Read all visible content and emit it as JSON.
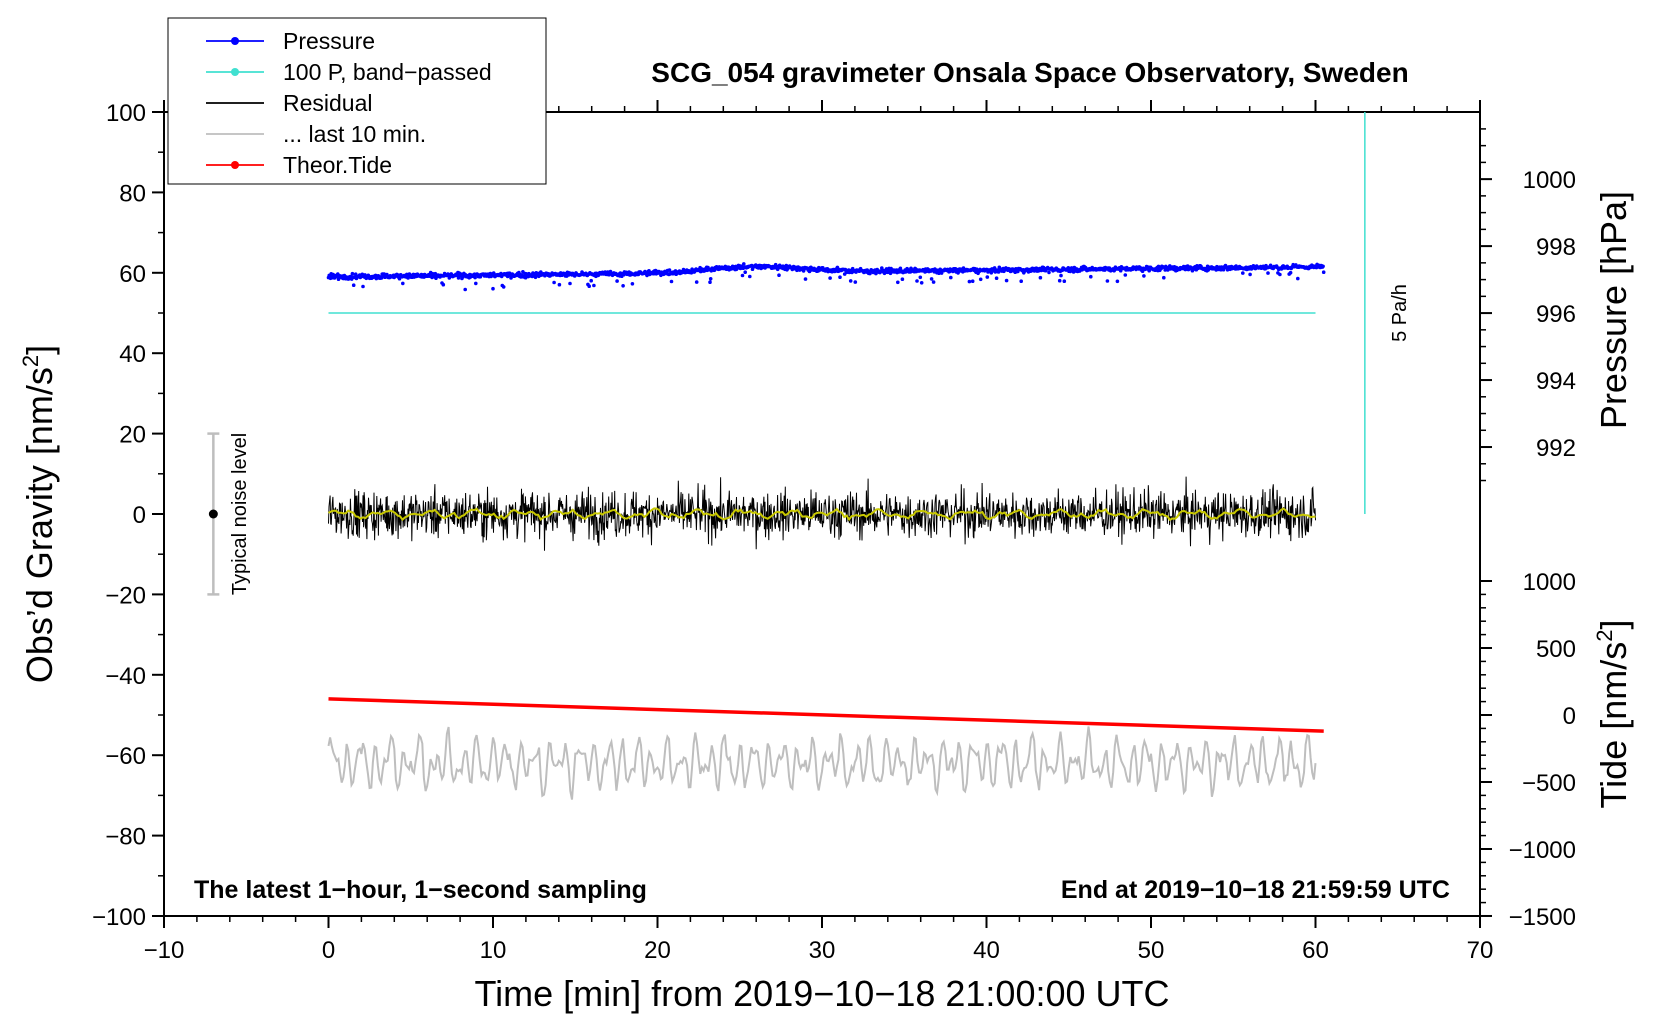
{
  "chart_data": {
    "type": "line",
    "title": "SCG_054 gravimeter Onsala Space Observatory, Sweden",
    "xlabel": "Time [min] from 2019−10−18 21:00:00 UTC",
    "ylabel_main": "Obs’d Gravity [nm/s",
    "ylabel_main_sup": "2",
    "ylabel_main_close": "]",
    "ylabel_pressure": "Pressure [hPa]",
    "ylabel_tide": "Tide [nm/s",
    "ylabel_tide_sup": "2",
    "ylabel_tide_close": "]",
    "xlim": [
      -10,
      70
    ],
    "ylim": [
      -100,
      100
    ],
    "x_ticks": [
      -10,
      0,
      10,
      20,
      30,
      40,
      50,
      60,
      70
    ],
    "x_tick_labels": [
      "−10",
      "0",
      "10",
      "20",
      "30",
      "40",
      "50",
      "60",
      "70"
    ],
    "y_ticks": [
      100,
      80,
      60,
      40,
      20,
      0,
      -20,
      -40,
      -60,
      -80,
      -100
    ],
    "y_tick_labels": [
      "100",
      "80",
      "60",
      "40",
      "20",
      "0",
      "−20",
      "−40",
      "−60",
      "−80",
      "−100"
    ],
    "pressure_axis": {
      "ticks": [
        1000,
        998,
        996,
        994,
        992
      ],
      "tick_labels": [
        "1000",
        "998",
        "996",
        "994",
        "992"
      ],
      "gravity_of_1000": 83.3,
      "gravity_per_hpa": 8.33
    },
    "tide_axis": {
      "ticks": [
        1000,
        500,
        0,
        -500,
        -1000,
        -1500
      ],
      "tick_labels": [
        "1000",
        "500",
        "0",
        "−500",
        "−1000",
        "−1500"
      ],
      "gravity_of_0": -50,
      "gravity_per_unit": 0.03333
    },
    "legend": {
      "position": "top-left",
      "entries": [
        {
          "label": "Pressure",
          "color": "#0000ff",
          "marker": "dot"
        },
        {
          "label": "100 P, band−passed",
          "color": "#40e0d0",
          "marker": "dot"
        },
        {
          "label": "Residual",
          "color": "#000000",
          "marker": "none"
        },
        {
          "label": "... last 10 min.",
          "color": "#bebebe",
          "marker": "none"
        },
        {
          "label": "Theor.Tide",
          "color": "#ff0000",
          "marker": "dot"
        }
      ]
    },
    "series": [
      {
        "name": "Pressure",
        "color": "#0000ff",
        "x_range": [
          0,
          60.5
        ],
        "gravity_level_start": 59,
        "gravity_level_end": 61.5,
        "hump_at_min": 26,
        "hump_level": 62.5,
        "unit": "hPa (approx 997.0 to 997.3)"
      },
      {
        "name": "100 P, band−passed",
        "color": "#40e0d0",
        "x_range": [
          0,
          60
        ],
        "gravity_level": 50
      },
      {
        "name": "Residual",
        "color": "#000000",
        "x_range": [
          0,
          60
        ],
        "center": 0,
        "amplitude": 6
      },
      {
        "name": "Residual smoothed",
        "color": "#c8c800",
        "x_range": [
          0,
          60
        ],
        "center": 0,
        "amplitude": 1.2
      },
      {
        "name": "... last 10 min.",
        "color": "#bebebe",
        "x_range": [
          0,
          60
        ],
        "center": -62,
        "amplitude": 5
      },
      {
        "name": "Theor.Tide",
        "color": "#ff0000",
        "x_range": [
          0,
          60.5
        ],
        "gravity_start": -46,
        "gravity_end": -54,
        "tide_start": 120,
        "tide_end": -120
      }
    ],
    "noise_bar": {
      "x": -7,
      "center": 0,
      "low": -20,
      "high": 20,
      "label": "Typical noise level"
    },
    "scale_bar": {
      "x": 63,
      "top": 100,
      "bottom": 0,
      "label": "5 Pa/h"
    },
    "annotations": {
      "bottom_left": "The latest 1−hour, 1−second sampling",
      "bottom_right": "End at 2019−10−18 21:59:59 UTC"
    }
  }
}
